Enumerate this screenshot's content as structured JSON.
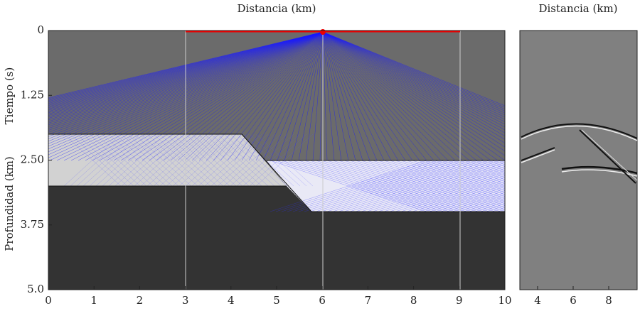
{
  "chart_data": [
    {
      "type": "raytrace",
      "title": "Distancia (km)",
      "y_labels": [
        "Tiempo (s)",
        "Profundidad (km)"
      ],
      "xlim": [
        0,
        10
      ],
      "ylim": [
        0,
        5
      ],
      "xticks": [
        0,
        1,
        2,
        3,
        4,
        5,
        6,
        7,
        8,
        9,
        10
      ],
      "yticks": [
        0,
        1.25,
        {
          "value": 2.5,
          "label": "2.50"
        },
        3.75,
        {
          "value": 5,
          "label": "5.0"
        }
      ]
    },
    {
      "type": "seismogram",
      "title": "Distancia (km)",
      "xlim": [
        3,
        9.6
      ],
      "ylim": [
        0,
        5
      ],
      "xticks": [
        4,
        6,
        8
      ]
    }
  ]
}
